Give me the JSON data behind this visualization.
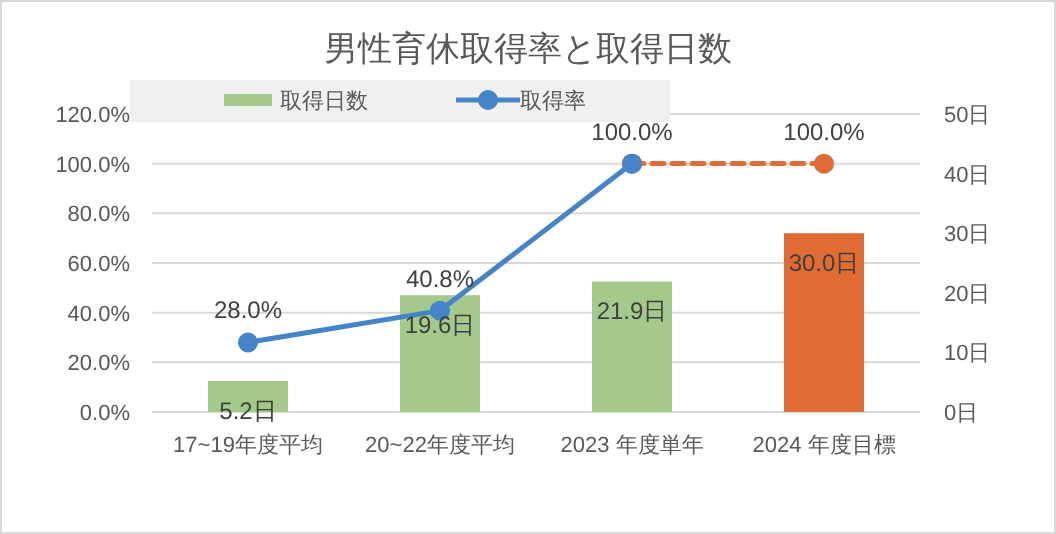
{
  "chart_data": {
    "type": "bar",
    "title": "男性育休取得率と取得日数",
    "categories": [
      "17~19年度平均",
      "20~22年度平均",
      "2023 年度単年",
      "2024 年度目標"
    ],
    "series": [
      {
        "name": "取得日数",
        "axis": "y2",
        "color": "#a3c98b",
        "colors": [
          "#a3c98b",
          "#a3c98b",
          "#a3c98b",
          "#e06c33"
        ],
        "values": [
          5.2,
          19.6,
          21.9,
          30.0
        ],
        "value_labels": [
          "5.2日",
          "19.6日",
          "21.9日",
          "30.0日"
        ]
      },
      {
        "type": "line",
        "axis": "y",
        "color": "#e06c33",
        "line_style": "dashed",
        "marker": "circle",
        "values": [
          null,
          null,
          100.0,
          100.0
        ],
        "value_labels": [
          null,
          null,
          null,
          "100.0%"
        ]
      },
      {
        "name": "取得率",
        "type": "line",
        "axis": "y",
        "color": "#4584c6",
        "line_style": "solid",
        "marker": "circle",
        "values": [
          28.0,
          40.8,
          100.0,
          null
        ],
        "value_labels": [
          "28.0%",
          "40.8%",
          "100.0%",
          null
        ]
      }
    ],
    "ylim": [
      0,
      120
    ],
    "yticks": [
      {
        "value": 0,
        "label": "0.0%"
      },
      {
        "value": 20,
        "label": "20.0%"
      },
      {
        "value": 40,
        "label": "40.0%"
      },
      {
        "value": 60,
        "label": "60.0%"
      },
      {
        "value": 80,
        "label": "80.0%"
      },
      {
        "value": 100,
        "label": "100.0%"
      },
      {
        "value": 120,
        "label": "120.0%"
      }
    ],
    "y2lim": [
      0,
      50
    ],
    "y2ticks": [
      {
        "value": 0,
        "label": "0日"
      },
      {
        "value": 10,
        "label": "10日"
      },
      {
        "value": 20,
        "label": "20日"
      },
      {
        "value": 30,
        "label": "30日"
      },
      {
        "value": 40,
        "label": "40日"
      },
      {
        "value": 50,
        "label": "50日"
      }
    ],
    "grid": "y",
    "legend": "top"
  }
}
